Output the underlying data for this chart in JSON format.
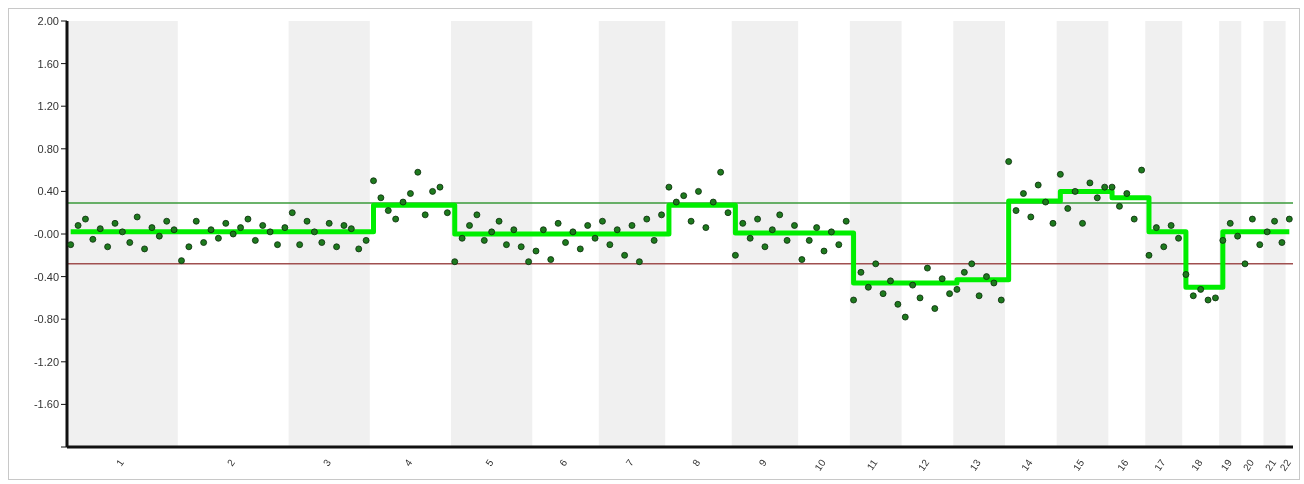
{
  "chart_data": {
    "type": "scatter",
    "categories": [
      null,
      null,
      null,
      null,
      null,
      null,
      null,
      "1",
      null,
      null,
      null,
      null,
      null,
      null,
      null,
      null,
      null,
      null,
      null,
      null,
      null,
      null,
      "2",
      null,
      null,
      null,
      null,
      null,
      null,
      null,
      null,
      null,
      null,
      null,
      null,
      "3",
      null,
      null,
      null,
      null,
      null,
      null,
      null,
      null,
      null,
      null,
      "4",
      null,
      null,
      null,
      null,
      null,
      null,
      null,
      null,
      null,
      null,
      "5",
      null,
      null,
      null,
      null,
      null,
      null,
      null,
      null,
      null,
      "6",
      null,
      null,
      null,
      null,
      null,
      null,
      null,
      null,
      "7",
      null,
      null,
      null,
      null,
      null,
      null,
      null,
      null,
      "8",
      null,
      null,
      null,
      null,
      null,
      null,
      null,
      null,
      "9",
      null,
      null,
      null,
      null,
      null,
      null,
      null,
      "10",
      null,
      null,
      null,
      null,
      null,
      null,
      "11",
      null,
      null,
      null,
      null,
      null,
      null,
      "12",
      null,
      null,
      null,
      null,
      null,
      null,
      "13",
      null,
      null,
      null,
      null,
      null,
      null,
      "14",
      null,
      null,
      null,
      null,
      null,
      null,
      "15",
      null,
      null,
      null,
      null,
      null,
      "16",
      null,
      null,
      null,
      null,
      "17",
      null,
      null,
      null,
      null,
      "18",
      null,
      null,
      null,
      "19",
      null,
      null,
      "20",
      null,
      null,
      "21",
      null,
      "22"
    ],
    "ylim": [
      -2,
      2
    ],
    "yticks": [
      {
        "value": -2,
        "label": null
      },
      {
        "value": -1.6,
        "label": "-1.60"
      },
      {
        "value": -1.2,
        "label": "-1.20"
      },
      {
        "value": -0.8,
        "label": "-0.80"
      },
      {
        "value": -0.4,
        "label": "-0.40"
      },
      {
        "value": 0,
        "label": "-0.00"
      },
      {
        "value": 0.4,
        "label": "0.40"
      },
      {
        "value": 0.8,
        "label": "0.80"
      },
      {
        "value": 1.2,
        "label": "1.20"
      },
      {
        "value": 1.6,
        "label": "1.60"
      },
      {
        "value": 2,
        "label": "2.00"
      }
    ],
    "marker": "circle",
    "ref_lines": [
      {
        "axis": "y",
        "value": 0.29,
        "color": "#3a9a3a"
      },
      {
        "axis": "y",
        "value": -0.28,
        "color": "#a05050"
      }
    ],
    "series": [
      {
        "color": "#1e7a1e",
        "values": [
          -0.1,
          0.08,
          0.14,
          -0.05,
          0.05,
          -0.12,
          0.1,
          0.02,
          -0.08,
          0.16,
          -0.14,
          0.06,
          -0.02,
          0.12,
          0.04,
          -0.25,
          -0.12,
          0.12,
          -0.08,
          0.04,
          -0.04,
          0.1,
          0.0,
          0.06,
          0.14,
          -0.06,
          0.08,
          0.02,
          -0.1,
          0.06,
          0.2,
          -0.1,
          0.12,
          0.02,
          -0.08,
          0.1,
          -0.12,
          0.08,
          0.05,
          -0.14,
          -0.06,
          0.5,
          0.34,
          0.22,
          0.14,
          0.3,
          0.38,
          0.58,
          0.18,
          0.4,
          0.44,
          0.2,
          -0.26,
          -0.04,
          0.08,
          0.18,
          -0.06,
          0.02,
          0.12,
          -0.1,
          0.04,
          -0.12,
          -0.26,
          -0.16,
          0.04,
          -0.24,
          0.1,
          -0.08,
          0.02,
          -0.14,
          0.08,
          -0.04,
          0.12,
          -0.1,
          0.04,
          -0.2,
          0.08,
          -0.26,
          0.14,
          -0.06,
          0.18,
          0.44,
          0.3,
          0.36,
          0.12,
          0.4,
          0.06,
          0.3,
          0.58,
          0.2,
          -0.2,
          0.1,
          -0.04,
          0.14,
          -0.12,
          0.04,
          0.18,
          -0.06,
          0.08,
          -0.24,
          -0.06,
          0.06,
          -0.16,
          0.02,
          -0.1,
          0.12,
          -0.62,
          -0.36,
          -0.5,
          -0.28,
          -0.56,
          -0.44,
          -0.66,
          -0.78,
          -0.48,
          -0.6,
          -0.32,
          -0.7,
          -0.42,
          -0.56,
          -0.52,
          -0.36,
          -0.28,
          -0.58,
          -0.4,
          -0.46,
          -0.62,
          0.68,
          0.22,
          0.38,
          0.16,
          0.46,
          0.3,
          0.1,
          0.56,
          0.24,
          0.4,
          0.1,
          0.48,
          0.34,
          0.44,
          0.44,
          0.26,
          0.38,
          0.14,
          0.6,
          -0.2,
          0.06,
          -0.12,
          0.08,
          -0.04,
          -0.38,
          -0.58,
          -0.52,
          -0.62,
          -0.6,
          -0.06,
          0.1,
          -0.02,
          -0.28,
          0.14,
          -0.1,
          0.02,
          0.12,
          -0.08,
          0.14
        ]
      },
      {
        "type": "step",
        "color": "#00ee00",
        "marker": "none",
        "values": [
          0.02,
          0.02,
          0.02,
          0.02,
          0.02,
          0.02,
          0.02,
          0.02,
          0.02,
          0.02,
          0.02,
          0.02,
          0.02,
          0.02,
          0.02,
          0.02,
          0.02,
          0.02,
          0.02,
          0.02,
          0.02,
          0.02,
          0.02,
          0.02,
          0.02,
          0.02,
          0.02,
          0.02,
          0.02,
          0.02,
          0.02,
          0.02,
          0.02,
          0.02,
          0.02,
          0.02,
          0.02,
          0.02,
          0.02,
          0.02,
          0.02,
          0.27,
          0.27,
          0.27,
          0.27,
          0.27,
          0.27,
          0.27,
          0.27,
          0.27,
          0.27,
          0.27,
          0,
          0,
          0,
          0,
          0,
          0,
          0,
          0,
          0,
          0,
          0,
          0,
          0,
          0,
          0,
          0,
          0,
          0,
          0,
          0,
          0,
          0,
          0,
          0,
          0,
          0,
          0,
          0,
          0,
          0.27,
          0.27,
          0.27,
          0.27,
          0.27,
          0.27,
          0.27,
          0.27,
          0.27,
          0.01,
          0.01,
          0.01,
          0.01,
          0.01,
          0.01,
          0.01,
          0.01,
          0.01,
          0.01,
          0.01,
          0.01,
          0.01,
          0.01,
          0.01,
          0.01,
          -0.46,
          -0.46,
          -0.46,
          -0.46,
          -0.46,
          -0.46,
          -0.46,
          -0.46,
          -0.46,
          -0.46,
          -0.46,
          -0.46,
          -0.46,
          -0.46,
          -0.43,
          -0.43,
          -0.43,
          -0.43,
          -0.43,
          -0.43,
          -0.43,
          0.31,
          0.31,
          0.31,
          0.31,
          0.31,
          0.31,
          0.31,
          0.4,
          0.4,
          0.4,
          0.4,
          0.4,
          0.4,
          0.4,
          0.34,
          0.34,
          0.34,
          0.34,
          0.34,
          0.02,
          0.02,
          0.02,
          0.02,
          0.02,
          -0.5,
          -0.5,
          -0.5,
          -0.5,
          -0.5,
          0.02,
          0.02,
          0.02,
          0.02,
          0.02,
          0.02,
          0.02,
          0.02,
          0.02,
          0.02
        ]
      }
    ]
  }
}
